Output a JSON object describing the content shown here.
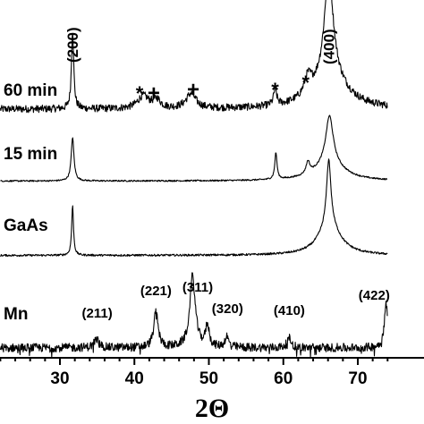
{
  "chart_data": {
    "type": "line",
    "title": "",
    "xlabel": "2Θ",
    "ylabel": "",
    "xlim": [
      22,
      74
    ],
    "x_ticks": [
      30,
      40,
      50,
      60,
      70
    ],
    "grid": false,
    "legend": "none",
    "series": [
      {
        "name": "60 min",
        "baseline": 0.05,
        "noise": 0.07,
        "peaks": [
          {
            "x": 31.7,
            "h": 0.75,
            "w": 0.18
          },
          {
            "x": 41.2,
            "h": 0.12,
            "w": 0.9
          },
          {
            "x": 43.0,
            "h": 0.08,
            "w": 0.6
          },
          {
            "x": 47.6,
            "h": 0.14,
            "w": 0.8
          },
          {
            "x": 58.9,
            "h": 0.15,
            "w": 0.25
          },
          {
            "x": 63.3,
            "h": 0.17,
            "w": 0.6
          },
          {
            "x": 66.1,
            "h": 1.0,
            "w": 0.7
          },
          {
            "x": 66.3,
            "h": 0.3,
            "w": 2.6
          }
        ]
      },
      {
        "name": "15 min",
        "baseline": 0.03,
        "noise": 0.03,
        "peaks": [
          {
            "x": 31.7,
            "h": 0.9,
            "w": 0.22
          },
          {
            "x": 59.0,
            "h": 0.55,
            "w": 0.18
          },
          {
            "x": 63.3,
            "h": 0.25,
            "w": 0.3
          },
          {
            "x": 66.2,
            "h": 1.0,
            "w": 0.6
          },
          {
            "x": 66.2,
            "h": 0.35,
            "w": 2.4
          }
        ]
      },
      {
        "name": "GaAs",
        "baseline": 0.02,
        "noise": 0.03,
        "peaks": [
          {
            "x": 31.7,
            "h": 0.75,
            "w": 0.15
          },
          {
            "x": 66.1,
            "h": 1.0,
            "w": 0.35
          },
          {
            "x": 66.2,
            "h": 0.45,
            "w": 1.8
          }
        ]
      },
      {
        "name": "Mn",
        "baseline": 0.04,
        "noise": 0.12,
        "peaks": [
          {
            "x": 34.9,
            "h": 0.12,
            "w": 0.4
          },
          {
            "x": 42.9,
            "h": 0.5,
            "w": 0.35
          },
          {
            "x": 47.8,
            "h": 1.0,
            "w": 0.45
          },
          {
            "x": 49.8,
            "h": 0.3,
            "w": 0.3
          },
          {
            "x": 52.4,
            "h": 0.15,
            "w": 0.3
          },
          {
            "x": 60.8,
            "h": 0.13,
            "w": 0.35
          },
          {
            "x": 73.8,
            "h": 0.6,
            "w": 0.3
          }
        ]
      }
    ],
    "annotations": {
      "gaas_peaks": [
        {
          "text": "(200)",
          "x": 31.7
        },
        {
          "text": "(400)",
          "x": 66.1
        }
      ],
      "markers": [
        {
          "text": "*",
          "x": 40.7
        },
        {
          "text": "+",
          "x": 42.6
        },
        {
          "text": "+",
          "x": 47.9
        },
        {
          "text": "*",
          "x": 58.9
        },
        {
          "text": "*",
          "x": 63.0
        }
      ],
      "mn_peaks": [
        {
          "text": "(211)",
          "x": 35.0
        },
        {
          "text": "(221)",
          "x": 42.9
        },
        {
          "text": "(311)",
          "x": 48.5
        },
        {
          "text": "(320)",
          "x": 52.5
        },
        {
          "text": "(410)",
          "x": 60.8
        },
        {
          "text": "(422)",
          "x": 72.2
        }
      ]
    }
  }
}
